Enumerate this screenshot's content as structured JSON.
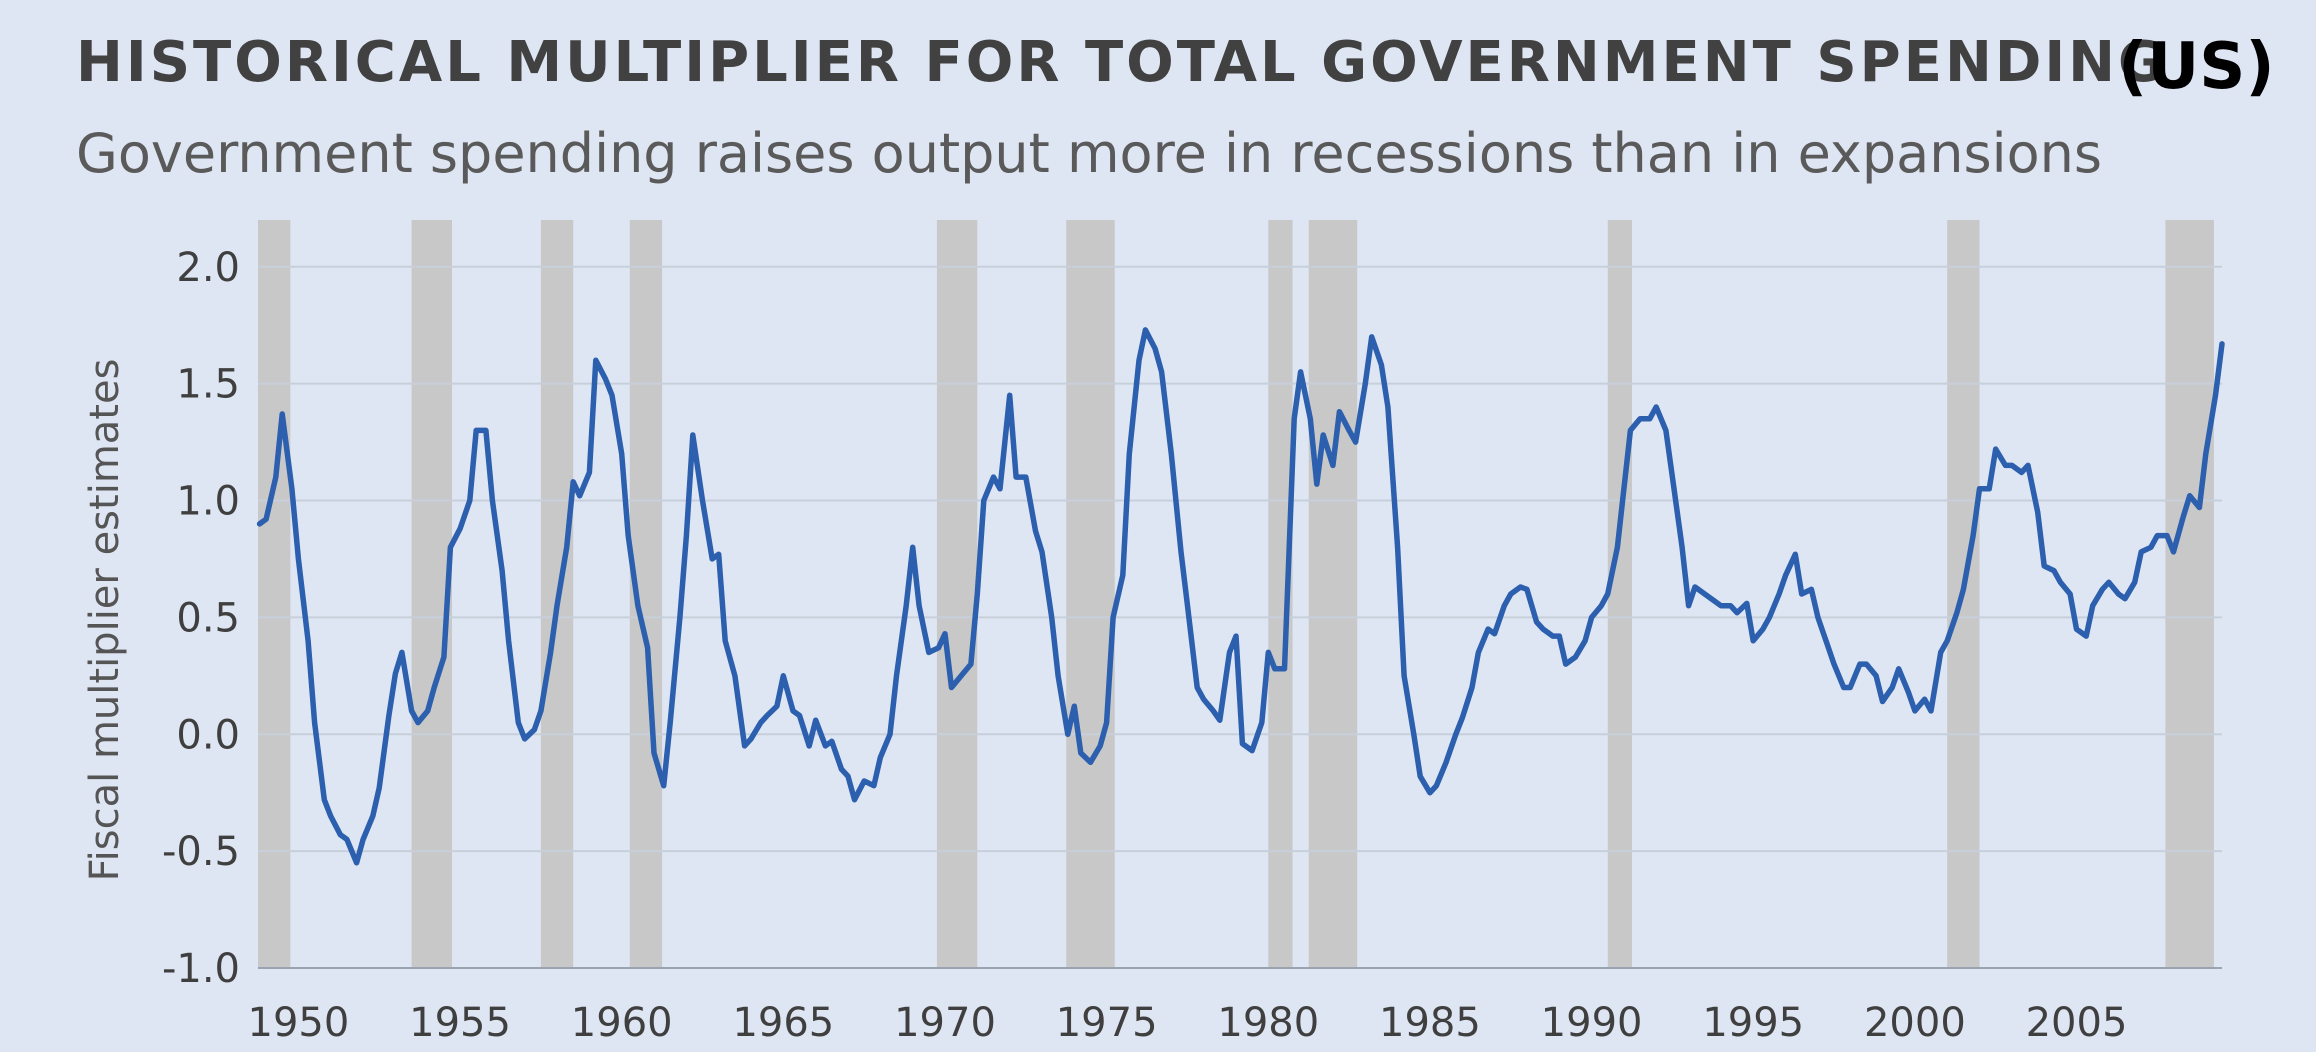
{
  "title": "HISTORICAL MULTIPLIER FOR TOTAL GOVERNMENT SPENDING",
  "title_suffix": "(US)",
  "subtitle": "Government spending raises output more in recessions than in expansions",
  "colors": {
    "background": "#dfe6f3",
    "line": "#2c5fae",
    "recession": "#c8c8c8",
    "grid": "#c7cfdb"
  },
  "chart_data": {
    "type": "line",
    "title": "HISTORICAL MULTIPLIER FOR TOTAL GOVERNMENT SPENDING",
    "subtitle": "Government spending raises output more in recessions than in expansions",
    "xlabel": "",
    "ylabel": "Fiscal multiplier estimates",
    "xlim": [
      1948.75,
      2009.5
    ],
    "ylim": [
      -1.0,
      2.2
    ],
    "grid": "horizontal",
    "x_ticks": [
      1950,
      1955,
      1960,
      1965,
      1970,
      1975,
      1980,
      1985,
      1990,
      1995,
      2000,
      2005
    ],
    "y_ticks": [
      -1.0,
      -0.5,
      0.0,
      0.5,
      1.0,
      1.5,
      2.0
    ],
    "x_tick_labels": [
      "1950",
      "1955",
      "1960",
      "1965",
      "1970",
      "1975",
      "1980",
      "1985",
      "1990",
      "1995",
      "2000",
      "2005"
    ],
    "y_tick_labels": [
      "-1.0",
      "-0.5",
      "0.0",
      "0.5",
      "1.0",
      "1.5",
      "2.0"
    ],
    "recession_shading": [
      [
        1948.75,
        1949.75
      ],
      [
        1953.5,
        1954.75
      ],
      [
        1957.5,
        1958.5
      ],
      [
        1960.25,
        1961.25
      ],
      [
        1969.75,
        1971.0
      ],
      [
        1973.75,
        1975.25
      ],
      [
        1980.0,
        1980.75
      ],
      [
        1981.25,
        1982.75
      ],
      [
        1990.5,
        1991.25
      ],
      [
        2001.0,
        2002.0
      ],
      [
        2007.75,
        2009.25
      ]
    ],
    "series": [
      {
        "values": [
          [
            1948.8,
            0.9
          ],
          [
            1949.0,
            0.92
          ],
          [
            1949.3,
            1.1
          ],
          [
            1949.5,
            1.37
          ],
          [
            1949.8,
            1.05
          ],
          [
            1950.0,
            0.75
          ],
          [
            1950.3,
            0.4
          ],
          [
            1950.5,
            0.05
          ],
          [
            1950.8,
            -0.28
          ],
          [
            1951.0,
            -0.35
          ],
          [
            1951.3,
            -0.43
          ],
          [
            1951.5,
            -0.45
          ],
          [
            1951.8,
            -0.55
          ],
          [
            1952.0,
            -0.45
          ],
          [
            1952.3,
            -0.35
          ],
          [
            1952.5,
            -0.23
          ],
          [
            1952.8,
            0.08
          ],
          [
            1953.0,
            0.26
          ],
          [
            1953.2,
            0.35
          ],
          [
            1953.5,
            0.1
          ],
          [
            1953.7,
            0.05
          ],
          [
            1954.0,
            0.1
          ],
          [
            1954.2,
            0.2
          ],
          [
            1954.5,
            0.33
          ],
          [
            1954.7,
            0.8
          ],
          [
            1955.0,
            0.88
          ],
          [
            1955.3,
            1.0
          ],
          [
            1955.5,
            1.3
          ],
          [
            1955.8,
            1.3
          ],
          [
            1956.0,
            1.0
          ],
          [
            1956.3,
            0.7
          ],
          [
            1956.5,
            0.4
          ],
          [
            1956.8,
            0.05
          ],
          [
            1957.0,
            -0.02
          ],
          [
            1957.3,
            0.02
          ],
          [
            1957.5,
            0.1
          ],
          [
            1957.8,
            0.35
          ],
          [
            1958.0,
            0.55
          ],
          [
            1958.3,
            0.8
          ],
          [
            1958.5,
            1.08
          ],
          [
            1958.7,
            1.02
          ],
          [
            1959.0,
            1.12
          ],
          [
            1959.2,
            1.6
          ],
          [
            1959.5,
            1.52
          ],
          [
            1959.7,
            1.45
          ],
          [
            1960.0,
            1.2
          ],
          [
            1960.2,
            0.85
          ],
          [
            1960.5,
            0.55
          ],
          [
            1960.8,
            0.37
          ],
          [
            1961.0,
            -0.08
          ],
          [
            1961.3,
            -0.22
          ],
          [
            1961.5,
            0.05
          ],
          [
            1961.8,
            0.5
          ],
          [
            1962.0,
            0.85
          ],
          [
            1962.2,
            1.28
          ],
          [
            1962.5,
            1.0
          ],
          [
            1962.8,
            0.75
          ],
          [
            1963.0,
            0.77
          ],
          [
            1963.2,
            0.4
          ],
          [
            1963.5,
            0.25
          ],
          [
            1963.8,
            -0.05
          ],
          [
            1964.0,
            -0.02
          ],
          [
            1964.3,
            0.05
          ],
          [
            1964.5,
            0.08
          ],
          [
            1964.8,
            0.12
          ],
          [
            1965.0,
            0.25
          ],
          [
            1965.3,
            0.1
          ],
          [
            1965.5,
            0.08
          ],
          [
            1965.8,
            -0.05
          ],
          [
            1966.0,
            0.06
          ],
          [
            1966.3,
            -0.05
          ],
          [
            1966.5,
            -0.03
          ],
          [
            1966.8,
            -0.15
          ],
          [
            1967.0,
            -0.18
          ],
          [
            1967.2,
            -0.28
          ],
          [
            1967.5,
            -0.2
          ],
          [
            1967.8,
            -0.22
          ],
          [
            1968.0,
            -0.1
          ],
          [
            1968.3,
            0.0
          ],
          [
            1968.5,
            0.25
          ],
          [
            1968.8,
            0.55
          ],
          [
            1969.0,
            0.8
          ],
          [
            1969.2,
            0.55
          ],
          [
            1969.5,
            0.35
          ],
          [
            1969.8,
            0.37
          ],
          [
            1970.0,
            0.43
          ],
          [
            1970.2,
            0.2
          ],
          [
            1970.5,
            0.25
          ],
          [
            1970.8,
            0.3
          ],
          [
            1971.0,
            0.6
          ],
          [
            1971.2,
            1.0
          ],
          [
            1971.5,
            1.1
          ],
          [
            1971.7,
            1.05
          ],
          [
            1972.0,
            1.45
          ],
          [
            1972.2,
            1.1
          ],
          [
            1972.5,
            1.1
          ],
          [
            1972.8,
            0.87
          ],
          [
            1973.0,
            0.78
          ],
          [
            1973.3,
            0.5
          ],
          [
            1973.5,
            0.25
          ],
          [
            1973.8,
            0.0
          ],
          [
            1974.0,
            0.12
          ],
          [
            1974.2,
            -0.08
          ],
          [
            1974.5,
            -0.12
          ],
          [
            1974.8,
            -0.05
          ],
          [
            1975.0,
            0.05
          ],
          [
            1975.2,
            0.5
          ],
          [
            1975.5,
            0.68
          ],
          [
            1975.7,
            1.2
          ],
          [
            1976.0,
            1.6
          ],
          [
            1976.2,
            1.73
          ],
          [
            1976.5,
            1.65
          ],
          [
            1976.7,
            1.55
          ],
          [
            1977.0,
            1.2
          ],
          [
            1977.3,
            0.78
          ],
          [
            1977.5,
            0.55
          ],
          [
            1977.8,
            0.2
          ],
          [
            1978.0,
            0.15
          ],
          [
            1978.3,
            0.1
          ],
          [
            1978.5,
            0.06
          ],
          [
            1978.8,
            0.35
          ],
          [
            1979.0,
            0.42
          ],
          [
            1979.2,
            -0.04
          ],
          [
            1979.5,
            -0.07
          ],
          [
            1979.8,
            0.05
          ],
          [
            1980.0,
            0.35
          ],
          [
            1980.2,
            0.28
          ],
          [
            1980.5,
            0.28
          ],
          [
            1980.8,
            1.35
          ],
          [
            1981.0,
            1.55
          ],
          [
            1981.3,
            1.35
          ],
          [
            1981.5,
            1.07
          ],
          [
            1981.7,
            1.28
          ],
          [
            1982.0,
            1.15
          ],
          [
            1982.2,
            1.38
          ],
          [
            1982.5,
            1.3
          ],
          [
            1982.7,
            1.25
          ],
          [
            1983.0,
            1.5
          ],
          [
            1983.2,
            1.7
          ],
          [
            1983.5,
            1.58
          ],
          [
            1983.7,
            1.4
          ],
          [
            1984.0,
            0.8
          ],
          [
            1984.2,
            0.25
          ],
          [
            1984.5,
            0.0
          ],
          [
            1984.7,
            -0.18
          ],
          [
            1985.0,
            -0.25
          ],
          [
            1985.2,
            -0.22
          ],
          [
            1985.5,
            -0.12
          ],
          [
            1985.8,
            0.0
          ],
          [
            1986.0,
            0.07
          ],
          [
            1986.3,
            0.2
          ],
          [
            1986.5,
            0.35
          ],
          [
            1986.8,
            0.45
          ],
          [
            1987.0,
            0.43
          ],
          [
            1987.3,
            0.55
          ],
          [
            1987.5,
            0.6
          ],
          [
            1987.8,
            0.63
          ],
          [
            1988.0,
            0.62
          ],
          [
            1988.3,
            0.48
          ],
          [
            1988.5,
            0.45
          ],
          [
            1988.8,
            0.42
          ],
          [
            1989.0,
            0.42
          ],
          [
            1989.2,
            0.3
          ],
          [
            1989.5,
            0.33
          ],
          [
            1989.8,
            0.4
          ],
          [
            1990.0,
            0.5
          ],
          [
            1990.3,
            0.55
          ],
          [
            1990.5,
            0.6
          ],
          [
            1990.8,
            0.8
          ],
          [
            1991.0,
            1.05
          ],
          [
            1991.2,
            1.3
          ],
          [
            1991.5,
            1.35
          ],
          [
            1991.8,
            1.35
          ],
          [
            1992.0,
            1.4
          ],
          [
            1992.3,
            1.3
          ],
          [
            1992.5,
            1.1
          ],
          [
            1992.8,
            0.8
          ],
          [
            1993.0,
            0.55
          ],
          [
            1993.2,
            0.63
          ],
          [
            1993.5,
            0.6
          ],
          [
            1993.8,
            0.57
          ],
          [
            1994.0,
            0.55
          ],
          [
            1994.3,
            0.55
          ],
          [
            1994.5,
            0.52
          ],
          [
            1994.8,
            0.56
          ],
          [
            1995.0,
            0.4
          ],
          [
            1995.3,
            0.45
          ],
          [
            1995.5,
            0.5
          ],
          [
            1995.8,
            0.6
          ],
          [
            1996.0,
            0.68
          ],
          [
            1996.3,
            0.77
          ],
          [
            1996.5,
            0.6
          ],
          [
            1996.8,
            0.62
          ],
          [
            1997.0,
            0.5
          ],
          [
            1997.3,
            0.38
          ],
          [
            1997.5,
            0.3
          ],
          [
            1997.8,
            0.2
          ],
          [
            1998.0,
            0.2
          ],
          [
            1998.3,
            0.3
          ],
          [
            1998.5,
            0.3
          ],
          [
            1998.8,
            0.25
          ],
          [
            1999.0,
            0.14
          ],
          [
            1999.3,
            0.2
          ],
          [
            1999.5,
            0.28
          ],
          [
            1999.8,
            0.18
          ],
          [
            2000.0,
            0.1
          ],
          [
            2000.3,
            0.15
          ],
          [
            2000.5,
            0.1
          ],
          [
            2000.8,
            0.35
          ],
          [
            2001.0,
            0.4
          ],
          [
            2001.3,
            0.52
          ],
          [
            2001.5,
            0.62
          ],
          [
            2001.8,
            0.85
          ],
          [
            2002.0,
            1.05
          ],
          [
            2002.3,
            1.05
          ],
          [
            2002.5,
            1.22
          ],
          [
            2002.8,
            1.15
          ],
          [
            2003.0,
            1.15
          ],
          [
            2003.3,
            1.12
          ],
          [
            2003.5,
            1.15
          ],
          [
            2003.8,
            0.95
          ],
          [
            2004.0,
            0.72
          ],
          [
            2004.3,
            0.7
          ],
          [
            2004.5,
            0.65
          ],
          [
            2004.8,
            0.6
          ],
          [
            2005.0,
            0.45
          ],
          [
            2005.3,
            0.42
          ],
          [
            2005.5,
            0.55
          ],
          [
            2005.8,
            0.62
          ],
          [
            2006.0,
            0.65
          ],
          [
            2006.3,
            0.6
          ],
          [
            2006.5,
            0.58
          ],
          [
            2006.8,
            0.65
          ],
          [
            2007.0,
            0.78
          ],
          [
            2007.3,
            0.8
          ],
          [
            2007.5,
            0.85
          ],
          [
            2007.8,
            0.85
          ],
          [
            2008.0,
            0.78
          ],
          [
            2008.3,
            0.93
          ],
          [
            2008.5,
            1.02
          ],
          [
            2008.8,
            0.97
          ],
          [
            2009.0,
            1.2
          ],
          [
            2009.3,
            1.45
          ],
          [
            2009.5,
            1.67
          ]
        ]
      }
    ]
  }
}
